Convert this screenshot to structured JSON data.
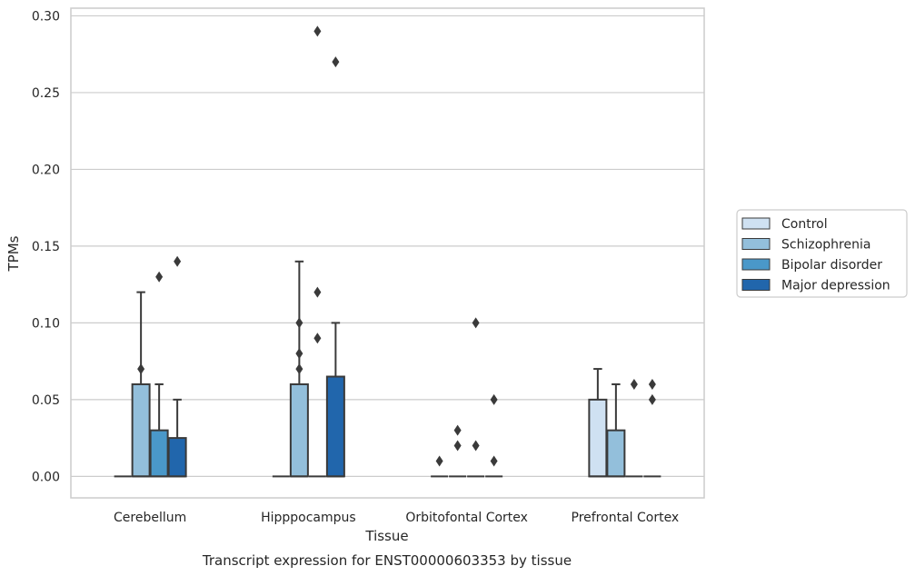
{
  "chart_data": {
    "type": "box",
    "title": "",
    "caption": "Transcript expression for ENST00000603353 by tissue",
    "xlabel": "Tissue",
    "ylabel": "TPMs",
    "ylim": [
      -0.014,
      0.305
    ],
    "yticks": [
      0.0,
      0.05,
      0.1,
      0.15,
      0.2,
      0.25,
      0.3
    ],
    "ytick_labels": [
      "0.00",
      "0.05",
      "0.10",
      "0.15",
      "0.20",
      "0.25",
      "0.30"
    ],
    "grid": "horizontal",
    "legend_position": "right",
    "categories": [
      "Cerebellum",
      "Hipppocampus",
      "Orbitofontal Cortex",
      "Prefrontal Cortex"
    ],
    "series": [
      {
        "name": "Control",
        "color": "#cfe1f2",
        "boxes": [
          {
            "q1": 0,
            "median": 0,
            "q3": 0,
            "whisker_low": 0,
            "whisker_high": 0,
            "outliers": []
          },
          {
            "q1": 0,
            "median": 0,
            "q3": 0,
            "whisker_low": 0,
            "whisker_high": 0,
            "outliers": []
          },
          {
            "q1": 0,
            "median": 0,
            "q3": 0,
            "whisker_low": 0,
            "whisker_high": 0,
            "outliers": [
              0.01
            ]
          },
          {
            "q1": 0,
            "median": 0,
            "q3": 0.05,
            "whisker_low": 0,
            "whisker_high": 0.07,
            "outliers": []
          }
        ]
      },
      {
        "name": "Schizophrenia",
        "color": "#93bfdb",
        "boxes": [
          {
            "q1": 0,
            "median": 0,
            "q3": 0.06,
            "whisker_low": 0,
            "whisker_high": 0.12,
            "outliers": [
              0.07
            ]
          },
          {
            "q1": 0,
            "median": 0,
            "q3": 0.06,
            "whisker_low": 0,
            "whisker_high": 0.14,
            "outliers": [
              0.1,
              0.08,
              0.07
            ]
          },
          {
            "q1": 0,
            "median": 0,
            "q3": 0,
            "whisker_low": 0,
            "whisker_high": 0,
            "outliers": [
              0.03,
              0.02
            ]
          },
          {
            "q1": 0,
            "median": 0,
            "q3": 0.03,
            "whisker_low": 0,
            "whisker_high": 0.06,
            "outliers": []
          }
        ]
      },
      {
        "name": "Bipolar disorder",
        "color": "#4a98c9",
        "boxes": [
          {
            "q1": 0,
            "median": 0,
            "q3": 0.03,
            "whisker_low": 0,
            "whisker_high": 0.06,
            "outliers": [
              0.13
            ]
          },
          {
            "q1": 0,
            "median": 0,
            "q3": 0,
            "whisker_low": 0,
            "whisker_high": 0,
            "outliers": [
              0.29,
              0.12,
              0.09
            ]
          },
          {
            "q1": 0,
            "median": 0,
            "q3": 0,
            "whisker_low": 0,
            "whisker_high": 0,
            "outliers": [
              0.1,
              0.02
            ]
          },
          {
            "q1": 0,
            "median": 0,
            "q3": 0,
            "whisker_low": 0,
            "whisker_high": 0,
            "outliers": [
              0.06
            ]
          }
        ]
      },
      {
        "name": "Major depression",
        "color": "#2166ac",
        "boxes": [
          {
            "q1": 0,
            "median": 0,
            "q3": 0.025,
            "whisker_low": 0,
            "whisker_high": 0.05,
            "outliers": [
              0.14
            ]
          },
          {
            "q1": 0,
            "median": 0,
            "q3": 0.065,
            "whisker_low": 0,
            "whisker_high": 0.1,
            "outliers": [
              0.27
            ]
          },
          {
            "q1": 0,
            "median": 0,
            "q3": 0,
            "whisker_low": 0,
            "whisker_high": 0,
            "outliers": [
              0.05,
              0.01
            ]
          },
          {
            "q1": 0,
            "median": 0,
            "q3": 0,
            "whisker_low": 0,
            "whisker_high": 0,
            "outliers": [
              0.06,
              0.05
            ]
          }
        ]
      }
    ]
  }
}
